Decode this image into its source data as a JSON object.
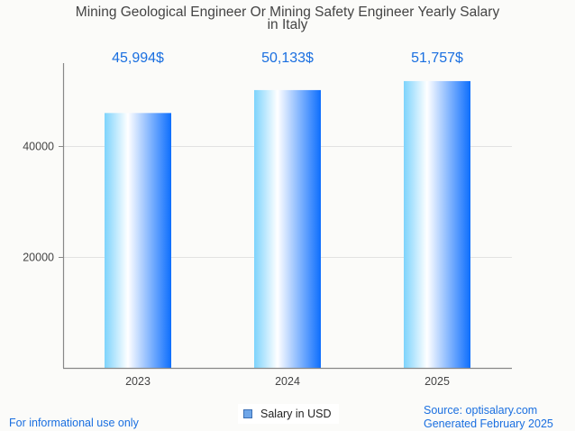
{
  "chart_data": {
    "type": "bar",
    "title": "Mining Geological Engineer Or Mining Safety Engineer Yearly Salary in Italy",
    "title_lines": [
      "Mining Geological Engineer Or Mining Safety Engineer Yearly Salary",
      "in Italy"
    ],
    "categories": [
      "2023",
      "2024",
      "2025"
    ],
    "values": [
      45994,
      50133,
      51757
    ],
    "value_labels": [
      "45,994$",
      "50,133$",
      "51,757$"
    ],
    "xlabel": "",
    "ylabel": "",
    "ylim": [
      0,
      55000
    ],
    "yticks": [
      20000,
      40000
    ],
    "ytick_labels": [
      "20000",
      "40000"
    ],
    "grid": true,
    "legend": {
      "entries": [
        "Salary in USD"
      ],
      "placement": "bottom-center"
    },
    "colors": {
      "bar_left": "#7dd3fc",
      "bar_mid": "#ffffff",
      "bar_right": "#0d6efd",
      "value_label": "#1a6fe0"
    }
  },
  "footer": {
    "disclaimer": "For informational use only",
    "source": "Source: optisalary.com",
    "generated": "Generated February 2025"
  }
}
